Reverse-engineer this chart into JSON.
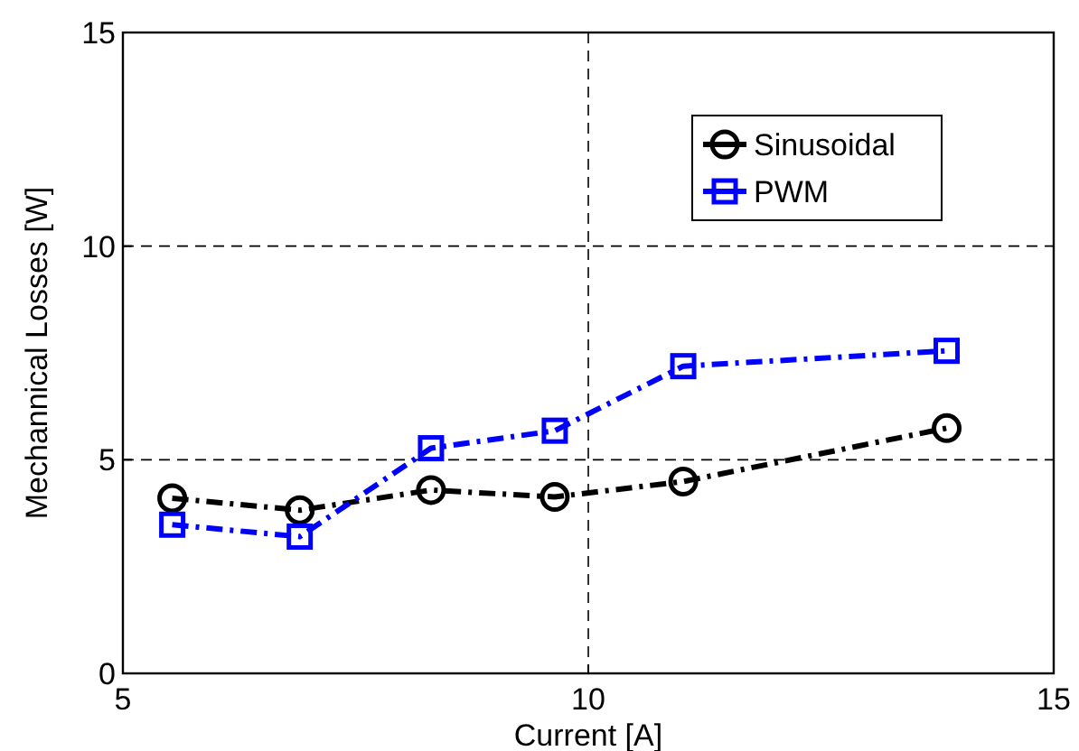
{
  "chart_data": {
    "type": "line",
    "xlabel": "Current [A]",
    "ylabel": "Mechannical Losses [W]",
    "xlim": [
      5,
      15
    ],
    "xticks": [
      5,
      10,
      15
    ],
    "ylim": [
      0,
      15
    ],
    "yticks": [
      0,
      5,
      10,
      15
    ],
    "grid": true,
    "legend": "top right",
    "line_style": "dashdot",
    "series": [
      {
        "name": "Sinusoidal",
        "color": "#000000",
        "marker": "circle",
        "x": [
          5.53,
          6.9,
          8.31,
          9.64,
          11.02,
          13.85
        ],
        "values": [
          4.1,
          3.82,
          4.29,
          4.13,
          4.49,
          5.74
        ]
      },
      {
        "name": "PWM",
        "color": "#0000ff",
        "marker": "square",
        "x": [
          5.53,
          6.9,
          8.31,
          9.64,
          11.02,
          13.85
        ],
        "values": [
          3.48,
          3.2,
          5.27,
          5.68,
          7.19,
          7.55
        ]
      }
    ]
  }
}
